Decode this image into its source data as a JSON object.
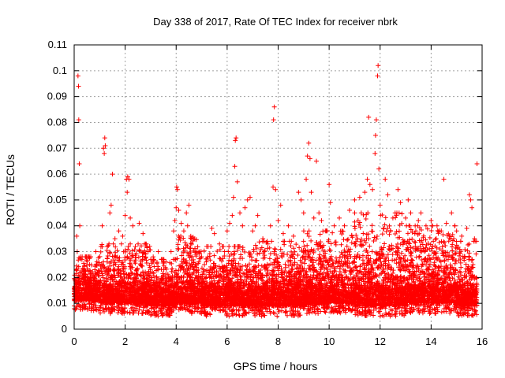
{
  "chart_data": {
    "type": "scatter",
    "title": "Day 338 of 2017, Rate Of TEC Index for receiver nbrk",
    "xlabel": "GPS time / hours",
    "ylabel": "ROTI / TECUs",
    "xlim": [
      0,
      16
    ],
    "ylim": [
      0,
      0.11
    ],
    "x_ticks": [
      0,
      2,
      4,
      6,
      8,
      10,
      12,
      14,
      16
    ],
    "x_tick_labels": [
      "0",
      "2",
      "4",
      "6",
      "8",
      "10",
      "12",
      "14",
      "16"
    ],
    "y_ticks": [
      0,
      0.01,
      0.02,
      0.03,
      0.04,
      0.05,
      0.06,
      0.07,
      0.08,
      0.09,
      0.1,
      0.11
    ],
    "y_tick_labels": [
      "0",
      "0.01",
      "0.02",
      "0.03",
      "0.04",
      "0.05",
      "0.06",
      "0.07",
      "0.08",
      "0.09",
      "0.1",
      "0.11"
    ],
    "grid": true,
    "marker": "+",
    "color": "#ff0000",
    "series": [
      {
        "name": "ROTI",
        "points": [
          [
            0.1,
            0.036
          ],
          [
            0.12,
            0.03
          ],
          [
            0.15,
            0.098
          ],
          [
            0.17,
            0.094
          ],
          [
            0.18,
            0.081
          ],
          [
            0.2,
            0.064
          ],
          [
            0.22,
            0.04
          ],
          [
            0.25,
            0.028
          ],
          [
            0.3,
            0.022
          ],
          [
            0.6,
            0.025
          ],
          [
            0.85,
            0.03
          ],
          [
            1.05,
            0.032
          ],
          [
            1.1,
            0.04
          ],
          [
            1.15,
            0.07
          ],
          [
            1.18,
            0.068
          ],
          [
            1.2,
            0.074
          ],
          [
            1.22,
            0.071
          ],
          [
            1.3,
            0.032
          ],
          [
            1.4,
            0.045
          ],
          [
            1.45,
            0.048
          ],
          [
            1.5,
            0.06
          ],
          [
            1.6,
            0.035
          ],
          [
            1.75,
            0.038
          ],
          [
            1.9,
            0.036
          ],
          [
            2.0,
            0.044
          ],
          [
            2.05,
            0.058
          ],
          [
            2.08,
            0.053
          ],
          [
            2.1,
            0.059
          ],
          [
            2.15,
            0.058
          ],
          [
            2.2,
            0.043
          ],
          [
            2.3,
            0.04
          ],
          [
            2.4,
            0.032
          ],
          [
            2.55,
            0.041
          ],
          [
            2.7,
            0.037
          ],
          [
            2.9,
            0.03
          ],
          [
            3.1,
            0.028
          ],
          [
            3.3,
            0.03
          ],
          [
            3.6,
            0.026
          ],
          [
            3.8,
            0.03
          ],
          [
            3.9,
            0.038
          ],
          [
            3.95,
            0.042
          ],
          [
            4.0,
            0.047
          ],
          [
            4.02,
            0.055
          ],
          [
            4.05,
            0.054
          ],
          [
            4.1,
            0.046
          ],
          [
            4.2,
            0.041
          ],
          [
            4.3,
            0.038
          ],
          [
            4.4,
            0.045
          ],
          [
            4.45,
            0.04
          ],
          [
            4.5,
            0.048
          ],
          [
            4.6,
            0.035
          ],
          [
            4.8,
            0.03
          ],
          [
            5.0,
            0.028
          ],
          [
            5.2,
            0.032
          ],
          [
            5.4,
            0.039
          ],
          [
            5.5,
            0.037
          ],
          [
            5.7,
            0.033
          ],
          [
            5.9,
            0.03
          ],
          [
            6.0,
            0.038
          ],
          [
            6.1,
            0.041
          ],
          [
            6.2,
            0.044
          ],
          [
            6.25,
            0.051
          ],
          [
            6.3,
            0.063
          ],
          [
            6.32,
            0.073
          ],
          [
            6.35,
            0.074
          ],
          [
            6.4,
            0.057
          ],
          [
            6.5,
            0.045
          ],
          [
            6.6,
            0.04
          ],
          [
            6.7,
            0.047
          ],
          [
            6.8,
            0.05
          ],
          [
            6.9,
            0.051
          ],
          [
            7.0,
            0.038
          ],
          [
            7.1,
            0.04
          ],
          [
            7.2,
            0.044
          ],
          [
            7.4,
            0.035
          ],
          [
            7.6,
            0.033
          ],
          [
            7.7,
            0.04
          ],
          [
            7.8,
            0.055
          ],
          [
            7.82,
            0.081
          ],
          [
            7.85,
            0.086
          ],
          [
            7.9,
            0.054
          ],
          [
            8.0,
            0.042
          ],
          [
            8.1,
            0.048
          ],
          [
            8.2,
            0.037
          ],
          [
            8.4,
            0.04
          ],
          [
            8.6,
            0.036
          ],
          [
            8.8,
            0.053
          ],
          [
            8.9,
            0.05
          ],
          [
            9.0,
            0.045
          ],
          [
            9.1,
            0.058
          ],
          [
            9.15,
            0.067
          ],
          [
            9.2,
            0.072
          ],
          [
            9.25,
            0.066
          ],
          [
            9.3,
            0.053
          ],
          [
            9.4,
            0.043
          ],
          [
            9.5,
            0.065
          ],
          [
            9.6,
            0.045
          ],
          [
            9.7,
            0.042
          ],
          [
            9.85,
            0.038
          ],
          [
            10.0,
            0.056
          ],
          [
            10.05,
            0.049
          ],
          [
            10.2,
            0.04
          ],
          [
            10.4,
            0.043
          ],
          [
            10.6,
            0.04
          ],
          [
            10.8,
            0.046
          ],
          [
            11.0,
            0.05
          ],
          [
            11.2,
            0.051
          ],
          [
            11.4,
            0.053
          ],
          [
            11.5,
            0.058
          ],
          [
            11.55,
            0.082
          ],
          [
            11.6,
            0.056
          ],
          [
            11.7,
            0.054
          ],
          [
            11.8,
            0.068
          ],
          [
            11.82,
            0.075
          ],
          [
            11.85,
            0.081
          ],
          [
            11.9,
            0.098
          ],
          [
            11.92,
            0.102
          ],
          [
            11.95,
            0.062
          ],
          [
            12.0,
            0.048
          ],
          [
            12.2,
            0.058
          ],
          [
            12.3,
            0.052
          ],
          [
            12.5,
            0.043
          ],
          [
            12.7,
            0.054
          ],
          [
            12.8,
            0.049
          ],
          [
            13.0,
            0.043
          ],
          [
            13.1,
            0.05
          ],
          [
            13.2,
            0.045
          ],
          [
            13.4,
            0.038
          ],
          [
            13.5,
            0.042
          ],
          [
            13.6,
            0.045
          ],
          [
            13.8,
            0.04
          ],
          [
            14.0,
            0.042
          ],
          [
            14.2,
            0.035
          ],
          [
            14.4,
            0.038
          ],
          [
            14.5,
            0.058
          ],
          [
            14.6,
            0.041
          ],
          [
            14.8,
            0.045
          ],
          [
            15.0,
            0.038
          ],
          [
            15.2,
            0.036
          ],
          [
            15.4,
            0.039
          ],
          [
            15.5,
            0.052
          ],
          [
            15.55,
            0.05
          ],
          [
            15.6,
            0.047
          ],
          [
            15.7,
            0.035
          ],
          [
            15.8,
            0.064
          ]
        ],
        "dense_band": [
          {
            "x_from": 0.0,
            "x_to": 1.0,
            "y_min": 0.007,
            "y_max": 0.028
          },
          {
            "x_from": 1.0,
            "x_to": 3.0,
            "y_min": 0.006,
            "y_max": 0.033
          },
          {
            "x_from": 3.0,
            "x_to": 4.0,
            "y_min": 0.005,
            "y_max": 0.027
          },
          {
            "x_from": 4.0,
            "x_to": 5.0,
            "y_min": 0.006,
            "y_max": 0.036
          },
          {
            "x_from": 5.0,
            "x_to": 7.0,
            "y_min": 0.005,
            "y_max": 0.032
          },
          {
            "x_from": 7.0,
            "x_to": 9.0,
            "y_min": 0.005,
            "y_max": 0.034
          },
          {
            "x_from": 9.0,
            "x_to": 11.0,
            "y_min": 0.006,
            "y_max": 0.038
          },
          {
            "x_from": 11.0,
            "x_to": 13.0,
            "y_min": 0.005,
            "y_max": 0.045
          },
          {
            "x_from": 13.0,
            "x_to": 15.0,
            "y_min": 0.006,
            "y_max": 0.04
          },
          {
            "x_from": 15.0,
            "x_to": 15.8,
            "y_min": 0.005,
            "y_max": 0.034
          }
        ]
      }
    ]
  }
}
